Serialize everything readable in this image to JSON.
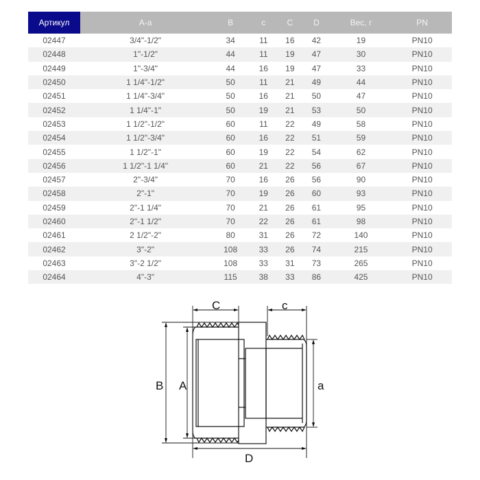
{
  "table": {
    "headers": [
      "Артикул",
      "A-a",
      "B",
      "c",
      "C",
      "D",
      "Вес, г",
      "PN"
    ],
    "rows": [
      [
        "02447",
        "3/4\"-1/2\"",
        "34",
        "11",
        "16",
        "42",
        "19",
        "PN10"
      ],
      [
        "02448",
        "1\"-1/2\"",
        "44",
        "11",
        "19",
        "47",
        "30",
        "PN10"
      ],
      [
        "02449",
        "1\"-3/4\"",
        "44",
        "16",
        "19",
        "47",
        "33",
        "PN10"
      ],
      [
        "02450",
        "1 1/4\"-1/2\"",
        "50",
        "11",
        "21",
        "49",
        "44",
        "PN10"
      ],
      [
        "02451",
        "1 1/4\"-3/4\"",
        "50",
        "16",
        "21",
        "50",
        "47",
        "PN10"
      ],
      [
        "02452",
        "1 1/4\"-1\"",
        "50",
        "19",
        "21",
        "53",
        "50",
        "PN10"
      ],
      [
        "02453",
        "1 1/2\"-1/2\"",
        "60",
        "11",
        "22",
        "49",
        "58",
        "PN10"
      ],
      [
        "02454",
        "1 1/2\"-3/4\"",
        "60",
        "16",
        "22",
        "51",
        "59",
        "PN10"
      ],
      [
        "02455",
        "1 1/2\"-1\"",
        "60",
        "19",
        "22",
        "54",
        "62",
        "PN10"
      ],
      [
        "02456",
        "1 1/2\"-1 1/4\"",
        "60",
        "21",
        "22",
        "56",
        "67",
        "PN10"
      ],
      [
        "02457",
        "2\"-3/4\"",
        "70",
        "16",
        "26",
        "56",
        "90",
        "PN10"
      ],
      [
        "02458",
        "2\"-1\"",
        "70",
        "19",
        "26",
        "60",
        "93",
        "PN10"
      ],
      [
        "02459",
        "2\"-1 1/4\"",
        "70",
        "21",
        "26",
        "61",
        "95",
        "PN10"
      ],
      [
        "02460",
        "2\"-1 1/2\"",
        "70",
        "22",
        "26",
        "61",
        "98",
        "PN10"
      ],
      [
        "02461",
        "2 1/2\"-2\"",
        "80",
        "31",
        "26",
        "72",
        "140",
        "PN10"
      ],
      [
        "02462",
        "3\"-2\"",
        "108",
        "33",
        "26",
        "74",
        "215",
        "PN10"
      ],
      [
        "02463",
        "3\"-2 1/2\"",
        "108",
        "33",
        "31",
        "73",
        "265",
        "PN10"
      ],
      [
        "02464",
        "4\"-3\"",
        "115",
        "38",
        "33",
        "86",
        "425",
        "PN10"
      ]
    ]
  },
  "diagram": {
    "labels": {
      "B": "B",
      "A": "A",
      "a": "a",
      "C": "C",
      "c": "c",
      "D": "D"
    }
  },
  "colors": {
    "header_accent": "#0a0a8c",
    "header": "#b8b8b8",
    "row_alt": "#f0f0f0"
  }
}
